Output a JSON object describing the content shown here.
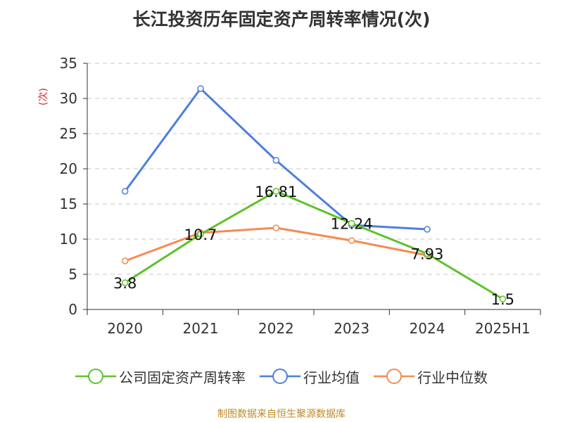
{
  "title": "长江投资历年固定资产周转率情况(次)",
  "source": "制图数据来自恒生聚源数据库",
  "chart_data": {
    "type": "line",
    "title": "长江投资历年固定资产周转率情况(次)",
    "xlabel": "",
    "ylabel": "(次)",
    "categories": [
      "2020",
      "2021",
      "2022",
      "2023",
      "2024",
      "2025H1"
    ],
    "ylim": [
      0,
      35
    ],
    "yticks": [
      0,
      5,
      10,
      15,
      20,
      25,
      30,
      35
    ],
    "grid": true,
    "legend_position": "bottom",
    "series": [
      {
        "name": "公司固定资产周转率",
        "color": "#5ec12b",
        "values": [
          3.8,
          10.7,
          16.81,
          12.24,
          7.93,
          1.5
        ],
        "labels": [
          "3.8",
          "10.7",
          "16.81",
          "12.24",
          "7.93",
          "1.5"
        ]
      },
      {
        "name": "行业均值",
        "color": "#4f7fdc",
        "values": [
          16.8,
          31.4,
          21.2,
          12.0,
          11.4,
          null
        ]
      },
      {
        "name": "行业中位数",
        "color": "#f58a52",
        "values": [
          6.9,
          10.9,
          11.6,
          9.8,
          7.7,
          null
        ]
      }
    ]
  }
}
